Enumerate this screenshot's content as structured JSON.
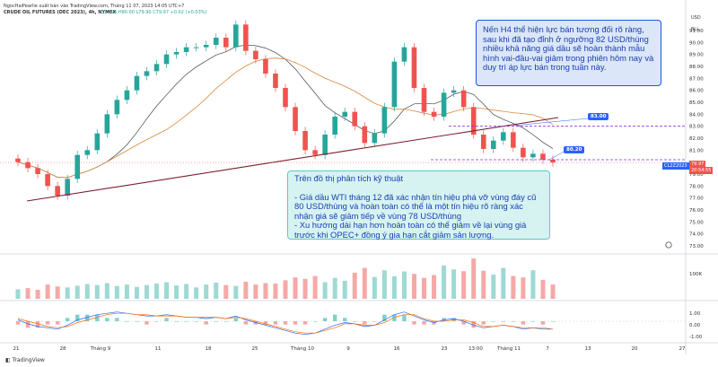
{
  "header": {
    "publisher": "NgocHaiPearlie xuất bản vào TradingView.com, Tháng 11 07, 2023 14:05 UTC+7",
    "symbol": "CRUDE OIL FUTURES (DEC 2023), 4h, NYMEX",
    "ohlc": "O79.95 H80.00 L79.90 C79.97 +0.02 (+0.03%)",
    "currency": "USD",
    "unit": "BLL"
  },
  "colors": {
    "up": "#26a69a",
    "down": "#ef5350",
    "trend": "#7b1f2b",
    "ma_fast": "#444444",
    "ma_slow": "#d9873d",
    "accent": "#2962ff",
    "dashed": "#8a2be2"
  },
  "annotations": {
    "top_note": "Nến H4 thể hiện lực bán tương đối rõ ràng, sau khi đã tạo đỉnh ở ngưỡng 82 USD/thùng nhiều khả năng giá dầu sẽ hoàn thành mẫu hình vai-đầu-vai giảm trong phiên hôm nay và duy trì áp lực bán trong tuần này.",
    "bottom_title": "Trên đồ thị phân tích kỹ thuật",
    "bottom_point1": "- Giá dầu WTI tháng 12 đã xác nhận tín hiệu phá vỡ vùng đáy cũ 80 USD/thùng và hoàn toàn có thể là một tín hiệu rõ ràng xác nhận giá sẽ giảm tiếp về vùng 78 USD/thùng",
    "bottom_point2": "- Xu hướng dài hạn hơn hoàn toàn có thể giảm về lại vùng giá trước khi OPEC+ đồng ý gia hạn cắt giảm sản lượng.",
    "level_upper_label": "83.00",
    "level_lower_label": "80.20",
    "axis_tag_blue": "CL2Z2023",
    "axis_tag_red": "79.97",
    "axis_tag_red_sub": "20:54:55"
  },
  "footer": {
    "brand": "TradingView"
  },
  "chart_data": [
    {
      "type": "candlestick",
      "title": "CRUDE OIL FUTURES (DEC 2023), 4h, NYMEX",
      "x_ticks": [
        "21",
        "28",
        "Tháng 9",
        "11",
        "18",
        "25",
        "Tháng 10",
        "9",
        "16",
        "23",
        "13:00",
        "Tháng 11",
        "7",
        "13",
        "20",
        "27"
      ],
      "y_ticks": [
        73.0,
        74.0,
        75.0,
        76.0,
        77.0,
        78.0,
        79.0,
        81.0,
        82.0,
        83.0,
        84.0,
        85.0,
        86.0,
        87.0,
        88.0,
        89.0,
        90.0,
        91.0
      ],
      "ylim": [
        72.4,
        92.2
      ],
      "series": [
        {
          "values": [
            80.0,
            79.5,
            79.0,
            78.0,
            77.2,
            78.6,
            80.6,
            81.0,
            82.4,
            84.0,
            85.2,
            86.0,
            87.2,
            87.6,
            88.2,
            89.0,
            89.2,
            89.6,
            89.6,
            89.8,
            90.4,
            89.6,
            91.5,
            89.3,
            88.6,
            87.4,
            86.2,
            84.6,
            82.6,
            81.0,
            80.6,
            82.3,
            83.8,
            84.2,
            83.0,
            81.6,
            82.4,
            84.6,
            88.4,
            89.6,
            86.2,
            84.2,
            83.8,
            85.8,
            86.0,
            84.6,
            82.3,
            81.1,
            81.8,
            82.5,
            81.2,
            80.4,
            80.7,
            80.2,
            79.97
          ]
        }
      ],
      "horizontal_levels": [
        83.0,
        80.2
      ],
      "last_price": 79.97,
      "grid": false
    },
    {
      "type": "bar",
      "title": "Volume",
      "y_ticks": [
        "100K"
      ],
      "values": [
        40,
        45,
        38,
        60,
        52,
        48,
        55,
        62,
        58,
        66,
        54,
        60,
        50,
        58,
        64,
        70,
        56,
        62,
        48,
        60,
        68,
        58,
        54,
        72,
        60,
        66,
        64,
        78,
        90,
        84,
        96,
        70,
        88,
        76,
        110,
        130,
        92,
        120,
        95,
        115,
        105,
        88,
        100,
        140,
        124,
        116,
        170,
        118,
        102,
        130,
        96,
        90,
        120,
        80,
        60
      ]
    },
    {
      "type": "line",
      "title": "MACD",
      "y_ticks": [
        "1.00",
        "0.00",
        "-1.00"
      ],
      "ylim": [
        -1.5,
        1.5
      ],
      "series": [
        {
          "values": [
            0.1,
            -0.2,
            -0.4,
            -0.5,
            -0.6,
            -0.3,
            0.1,
            0.3,
            0.5,
            0.6,
            0.7,
            0.6,
            0.5,
            0.4,
            0.4,
            0.5,
            0.4,
            0.3,
            0.3,
            0.2,
            0.3,
            0.2,
            0.4,
            0.1,
            -0.1,
            -0.3,
            -0.5,
            -0.7,
            -0.9,
            -1.0,
            -0.9,
            -0.6,
            -0.3,
            -0.1,
            -0.2,
            -0.4,
            -0.3,
            0.1,
            0.5,
            0.7,
            0.4,
            0.1,
            -0.1,
            0.1,
            0.2,
            0.0,
            -0.3,
            -0.5,
            -0.4,
            -0.3,
            -0.4,
            -0.6,
            -0.5,
            -0.6,
            -0.6
          ]
        },
        {
          "values": [
            0.2,
            0.0,
            -0.2,
            -0.4,
            -0.5,
            -0.4,
            -0.1,
            0.1,
            0.3,
            0.5,
            0.6,
            0.6,
            0.5,
            0.5,
            0.4,
            0.4,
            0.4,
            0.3,
            0.3,
            0.3,
            0.3,
            0.2,
            0.3,
            0.2,
            0.0,
            -0.2,
            -0.4,
            -0.6,
            -0.8,
            -0.9,
            -0.9,
            -0.7,
            -0.5,
            -0.2,
            -0.2,
            -0.3,
            -0.3,
            -0.1,
            0.3,
            0.5,
            0.5,
            0.2,
            0.0,
            0.0,
            0.1,
            0.1,
            -0.1,
            -0.4,
            -0.4,
            -0.3,
            -0.4,
            -0.5,
            -0.5,
            -0.5,
            -0.6
          ]
        }
      ]
    }
  ]
}
